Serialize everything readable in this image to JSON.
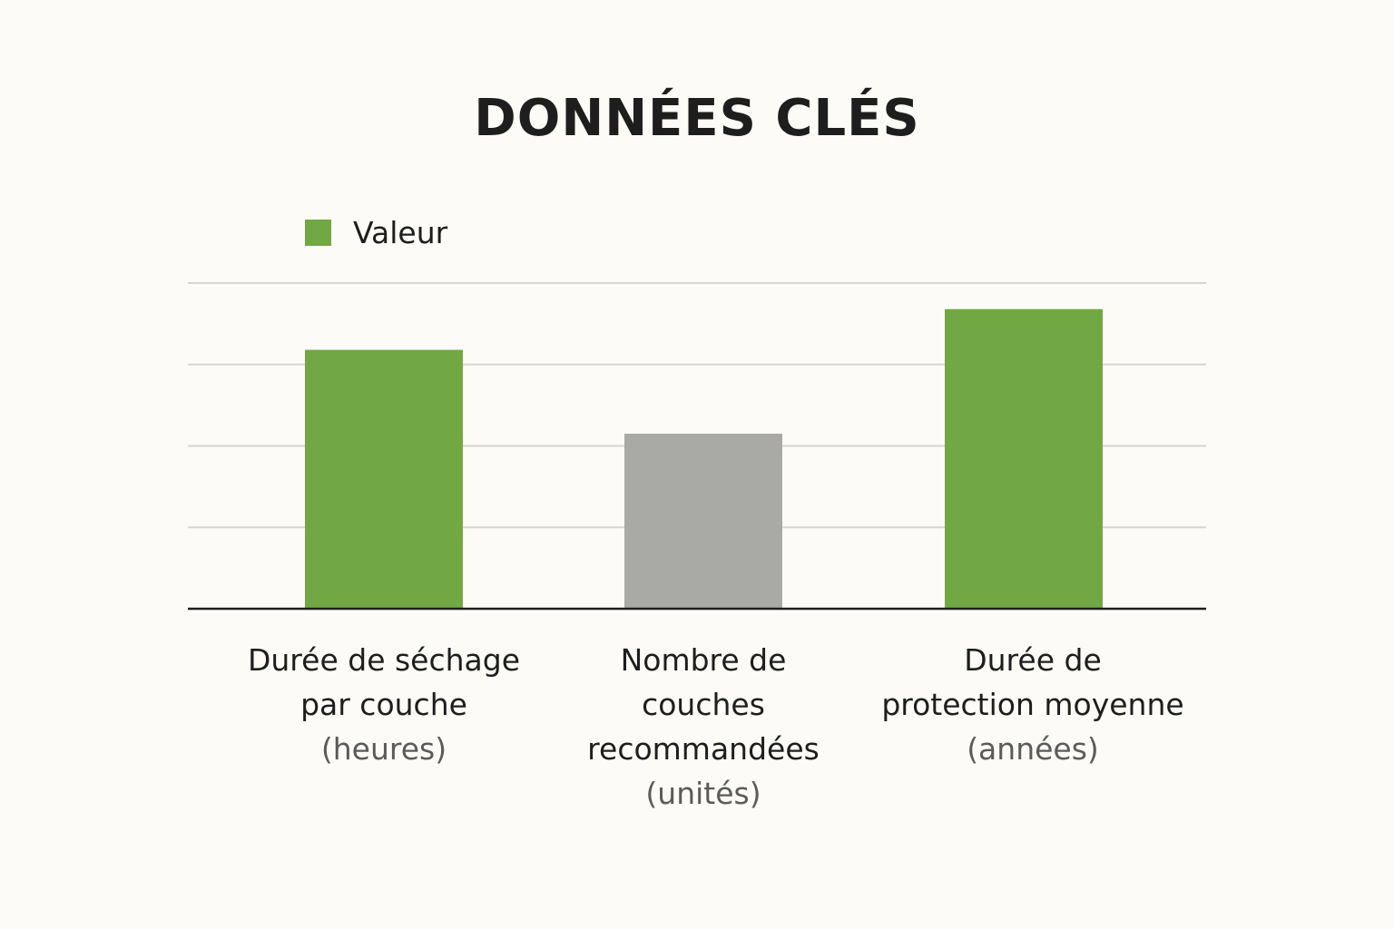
{
  "chart_data": {
    "type": "bar",
    "title": "DONNÉES CLÉS",
    "xlabel": "",
    "ylabel": "",
    "legend": {
      "placement": "top-left",
      "entries": [
        {
          "name": "Valeur",
          "color": "#72a843"
        }
      ]
    },
    "grid": true,
    "ylim": [
      0,
      4
    ],
    "categories": [
      {
        "lines": [
          "Durée de séchage",
          "par couche"
        ],
        "unit": "(heures)"
      },
      {
        "lines": [
          "Nombre de",
          "couches",
          "recommandées"
        ],
        "unit": "(unités)"
      },
      {
        "lines": [
          "Durée de",
          "protection moyenne"
        ],
        "unit": "(années)"
      }
    ],
    "series": [
      {
        "name": "Valeur",
        "values": [
          3.18,
          2.15,
          3.68
        ],
        "colors": [
          "#72a843",
          "#a9a9a5",
          "#72a843"
        ]
      }
    ]
  }
}
